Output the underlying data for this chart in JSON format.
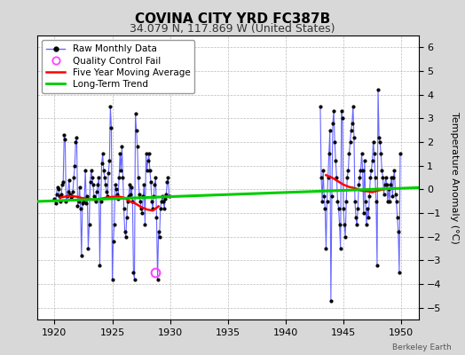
{
  "title": "COVINA CITY YRD FC387B",
  "subtitle": "34.079 N, 117.869 W (United States)",
  "ylabel": "Temperature Anomaly (°C)",
  "credit": "Berkeley Earth",
  "xlim": [
    1918.5,
    1951.5
  ],
  "ylim": [
    -5.5,
    6.5
  ],
  "yticks": [
    -5,
    -4,
    -3,
    -2,
    -1,
    0,
    1,
    2,
    3,
    4,
    5,
    6
  ],
  "xticks": [
    1920,
    1925,
    1930,
    1935,
    1940,
    1945,
    1950
  ],
  "bg_color": "#d8d8d8",
  "plot_bg_color": "#ffffff",
  "raw_line_color": "#6666ff",
  "raw_dot_color": "#000000",
  "moving_avg_color": "#ff0000",
  "trend_color": "#00cc00",
  "qc_fail_color": "#ff44ff",
  "raw_monthly_data": [
    [
      1920.0,
      -0.4
    ],
    [
      1920.083,
      -0.6
    ],
    [
      1920.167,
      -0.2
    ],
    [
      1920.25,
      0.1
    ],
    [
      1920.333,
      0.0
    ],
    [
      1920.417,
      -0.3
    ],
    [
      1920.5,
      -0.5
    ],
    [
      1920.583,
      -0.2
    ],
    [
      1920.667,
      0.2
    ],
    [
      1920.75,
      0.3
    ],
    [
      1920.833,
      2.3
    ],
    [
      1920.917,
      2.1
    ],
    [
      1921.0,
      -0.5
    ],
    [
      1921.083,
      -0.3
    ],
    [
      1921.167,
      -0.1
    ],
    [
      1921.25,
      0.4
    ],
    [
      1921.333,
      -0.2
    ],
    [
      1921.417,
      -0.4
    ],
    [
      1921.5,
      -0.3
    ],
    [
      1921.583,
      -0.1
    ],
    [
      1921.667,
      0.5
    ],
    [
      1921.75,
      1.0
    ],
    [
      1921.833,
      2.0
    ],
    [
      1921.917,
      2.2
    ],
    [
      1922.0,
      -0.7
    ],
    [
      1922.083,
      -0.5
    ],
    [
      1922.167,
      0.1
    ],
    [
      1922.25,
      -0.8
    ],
    [
      1922.333,
      -2.8
    ],
    [
      1922.417,
      -0.6
    ],
    [
      1922.5,
      -0.5
    ],
    [
      1922.583,
      -0.4
    ],
    [
      1922.667,
      0.8
    ],
    [
      1922.75,
      -0.6
    ],
    [
      1922.833,
      -0.3
    ],
    [
      1922.917,
      -2.5
    ],
    [
      1923.0,
      -1.5
    ],
    [
      1923.083,
      0.3
    ],
    [
      1923.167,
      0.8
    ],
    [
      1923.25,
      0.5
    ],
    [
      1923.333,
      0.2
    ],
    [
      1923.417,
      -0.3
    ],
    [
      1923.5,
      -0.4
    ],
    [
      1923.583,
      -0.5
    ],
    [
      1923.667,
      -0.1
    ],
    [
      1923.75,
      0.2
    ],
    [
      1923.833,
      0.5
    ],
    [
      1923.917,
      -3.2
    ],
    [
      1924.0,
      -0.5
    ],
    [
      1924.083,
      1.1
    ],
    [
      1924.167,
      1.5
    ],
    [
      1924.25,
      0.8
    ],
    [
      1924.333,
      0.5
    ],
    [
      1924.417,
      0.2
    ],
    [
      1924.5,
      -0.1
    ],
    [
      1924.583,
      -0.3
    ],
    [
      1924.667,
      0.7
    ],
    [
      1924.75,
      1.2
    ],
    [
      1924.833,
      3.5
    ],
    [
      1924.917,
      2.6
    ],
    [
      1925.0,
      -3.8
    ],
    [
      1925.083,
      -2.2
    ],
    [
      1925.167,
      -1.5
    ],
    [
      1925.25,
      0.2
    ],
    [
      1925.333,
      0.0
    ],
    [
      1925.417,
      -0.2
    ],
    [
      1925.5,
      -0.4
    ],
    [
      1925.583,
      0.5
    ],
    [
      1925.667,
      1.5
    ],
    [
      1925.75,
      0.8
    ],
    [
      1925.833,
      1.8
    ],
    [
      1925.917,
      0.5
    ],
    [
      1926.0,
      -0.8
    ],
    [
      1926.083,
      -1.8
    ],
    [
      1926.167,
      -2.0
    ],
    [
      1926.25,
      -1.2
    ],
    [
      1926.333,
      -0.5
    ],
    [
      1926.417,
      -0.3
    ],
    [
      1926.5,
      0.2
    ],
    [
      1926.583,
      -0.2
    ],
    [
      1926.667,
      0.1
    ],
    [
      1926.75,
      -0.5
    ],
    [
      1926.833,
      -3.5
    ],
    [
      1926.917,
      -3.8
    ],
    [
      1927.0,
      3.2
    ],
    [
      1927.083,
      2.5
    ],
    [
      1927.167,
      1.8
    ],
    [
      1927.25,
      0.5
    ],
    [
      1927.333,
      -0.2
    ],
    [
      1927.417,
      -0.5
    ],
    [
      1927.5,
      -0.8
    ],
    [
      1927.583,
      -1.0
    ],
    [
      1927.667,
      -0.3
    ],
    [
      1927.75,
      0.2
    ],
    [
      1927.833,
      -1.5
    ],
    [
      1927.917,
      1.5
    ],
    [
      1928.0,
      0.8
    ],
    [
      1928.083,
      1.2
    ],
    [
      1928.167,
      1.5
    ],
    [
      1928.25,
      0.8
    ],
    [
      1928.333,
      0.3
    ],
    [
      1928.417,
      -0.5
    ],
    [
      1928.5,
      -0.8
    ],
    [
      1928.583,
      -0.3
    ],
    [
      1928.667,
      0.2
    ],
    [
      1928.75,
      0.5
    ],
    [
      1928.833,
      -1.2
    ],
    [
      1928.917,
      -3.8
    ],
    [
      1929.0,
      -1.8
    ],
    [
      1929.083,
      -2.0
    ],
    [
      1929.167,
      -0.8
    ],
    [
      1929.25,
      -0.5
    ],
    [
      1929.333,
      -0.3
    ],
    [
      1929.417,
      -0.5
    ],
    [
      1929.5,
      -0.8
    ],
    [
      1929.583,
      -0.4
    ],
    [
      1929.667,
      -0.2
    ],
    [
      1929.75,
      0.3
    ],
    [
      1929.833,
      0.5
    ],
    [
      1929.917,
      -0.3
    ],
    [
      1943.0,
      3.5
    ],
    [
      1943.083,
      0.5
    ],
    [
      1943.167,
      -0.5
    ],
    [
      1943.25,
      0.8
    ],
    [
      1943.333,
      -0.3
    ],
    [
      1943.417,
      -0.8
    ],
    [
      1943.5,
      -2.5
    ],
    [
      1943.583,
      -0.5
    ],
    [
      1943.667,
      0.5
    ],
    [
      1943.75,
      1.5
    ],
    [
      1943.833,
      2.5
    ],
    [
      1943.917,
      -4.7
    ],
    [
      1944.0,
      -0.3
    ],
    [
      1944.083,
      2.8
    ],
    [
      1944.167,
      3.3
    ],
    [
      1944.25,
      2.0
    ],
    [
      1944.333,
      1.2
    ],
    [
      1944.417,
      0.5
    ],
    [
      1944.5,
      -0.5
    ],
    [
      1944.583,
      -0.8
    ],
    [
      1944.667,
      -1.5
    ],
    [
      1944.75,
      -2.5
    ],
    [
      1944.833,
      3.3
    ],
    [
      1944.917,
      3.0
    ],
    [
      1945.0,
      -0.8
    ],
    [
      1945.083,
      -1.5
    ],
    [
      1945.167,
      -2.0
    ],
    [
      1945.25,
      -0.5
    ],
    [
      1945.333,
      0.5
    ],
    [
      1945.417,
      0.8
    ],
    [
      1945.5,
      1.5
    ],
    [
      1945.583,
      2.0
    ],
    [
      1945.667,
      2.5
    ],
    [
      1945.75,
      2.8
    ],
    [
      1945.833,
      3.5
    ],
    [
      1945.917,
      2.2
    ],
    [
      1946.0,
      -0.5
    ],
    [
      1946.083,
      -1.2
    ],
    [
      1946.167,
      -1.5
    ],
    [
      1946.25,
      -0.8
    ],
    [
      1946.333,
      0.2
    ],
    [
      1946.417,
      0.5
    ],
    [
      1946.5,
      0.8
    ],
    [
      1946.583,
      1.5
    ],
    [
      1946.667,
      0.8
    ],
    [
      1946.75,
      -1.0
    ],
    [
      1946.833,
      1.2
    ],
    [
      1946.917,
      -0.5
    ],
    [
      1947.0,
      -1.5
    ],
    [
      1947.083,
      -0.8
    ],
    [
      1947.167,
      -1.2
    ],
    [
      1947.25,
      -0.3
    ],
    [
      1947.333,
      0.5
    ],
    [
      1947.417,
      0.8
    ],
    [
      1947.5,
      1.2
    ],
    [
      1947.583,
      2.0
    ],
    [
      1947.667,
      1.5
    ],
    [
      1947.75,
      0.5
    ],
    [
      1947.833,
      -0.5
    ],
    [
      1947.917,
      -3.2
    ],
    [
      1948.0,
      4.2
    ],
    [
      1948.083,
      2.2
    ],
    [
      1948.167,
      2.0
    ],
    [
      1948.25,
      1.5
    ],
    [
      1948.333,
      0.8
    ],
    [
      1948.417,
      0.5
    ],
    [
      1948.5,
      -0.2
    ],
    [
      1948.583,
      0.2
    ],
    [
      1948.667,
      0.5
    ],
    [
      1948.75,
      0.2
    ],
    [
      1948.833,
      -0.5
    ],
    [
      1948.917,
      0.0
    ],
    [
      1949.0,
      -0.5
    ],
    [
      1949.083,
      0.2
    ],
    [
      1949.167,
      0.5
    ],
    [
      1949.25,
      -0.3
    ],
    [
      1949.333,
      0.5
    ],
    [
      1949.417,
      0.8
    ],
    [
      1949.5,
      -0.2
    ],
    [
      1949.583,
      -0.5
    ],
    [
      1949.667,
      -1.2
    ],
    [
      1949.75,
      -1.8
    ],
    [
      1949.833,
      -3.5
    ],
    [
      1949.917,
      1.5
    ]
  ],
  "qc_fail_points": [
    [
      1928.75,
      -3.5
    ]
  ],
  "five_year_avg": [
    [
      1920.5,
      -0.35
    ],
    [
      1921.0,
      -0.3
    ],
    [
      1921.5,
      -0.28
    ],
    [
      1922.0,
      -0.32
    ],
    [
      1922.5,
      -0.38
    ],
    [
      1923.0,
      -0.42
    ],
    [
      1923.5,
      -0.45
    ],
    [
      1924.0,
      -0.4
    ],
    [
      1924.5,
      -0.35
    ],
    [
      1925.0,
      -0.32
    ],
    [
      1925.5,
      -0.3
    ],
    [
      1926.0,
      -0.35
    ],
    [
      1926.5,
      -0.5
    ],
    [
      1927.0,
      -0.6
    ],
    [
      1927.5,
      -0.75
    ],
    [
      1928.0,
      -0.85
    ],
    [
      1928.5,
      -0.9
    ],
    [
      1929.0,
      -0.72
    ],
    [
      1943.5,
      0.6
    ],
    [
      1944.0,
      0.5
    ],
    [
      1944.5,
      0.35
    ],
    [
      1945.0,
      0.2
    ],
    [
      1945.5,
      0.1
    ],
    [
      1946.0,
      0.05
    ],
    [
      1946.5,
      -0.05
    ],
    [
      1947.0,
      -0.08
    ],
    [
      1947.5,
      -0.12
    ],
    [
      1948.0,
      -0.05
    ],
    [
      1948.5,
      0.0
    ]
  ],
  "trend_line": [
    [
      1918,
      -0.52
    ],
    [
      1952,
      0.08
    ]
  ],
  "title_fontsize": 11,
  "subtitle_fontsize": 9,
  "label_fontsize": 8,
  "tick_fontsize": 8,
  "legend_fontsize": 7.5
}
